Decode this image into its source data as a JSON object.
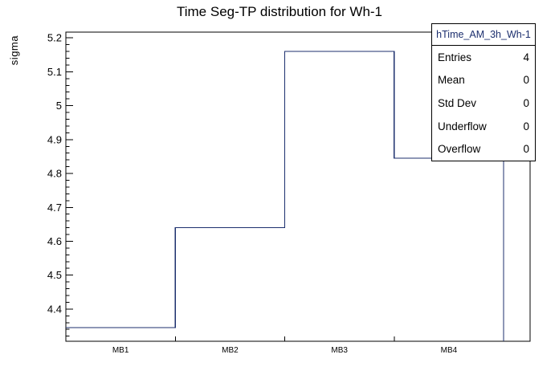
{
  "page_title": "Time Seg-TP distribution for Wh-1",
  "chart_data": {
    "type": "bar",
    "draw_style": "step-outline-histogram",
    "title": "Time Seg-TP distribution for Wh-1",
    "xlabel": "",
    "ylabel": "sigma",
    "categories": [
      "MB1",
      "MB2",
      "MB3",
      "MB4"
    ],
    "values": [
      4.345,
      4.64,
      5.16,
      4.845
    ],
    "ylim": [
      4.305,
      5.217
    ],
    "yticks": [
      4.4,
      4.5,
      4.6,
      4.7,
      4.8,
      4.9,
      5,
      5.1,
      5.2
    ],
    "y_minor_step": 0.02,
    "grid": false,
    "legend_position": "none",
    "line_color": "#1c2f6e",
    "frame_color": "#000000"
  },
  "stats_box": {
    "header": "hTime_AM_3h_Wh-1",
    "rows": [
      {
        "label": "Entries",
        "value": "4"
      },
      {
        "label": "Mean",
        "value": "0"
      },
      {
        "label": "Std Dev",
        "value": "0"
      },
      {
        "label": "Underflow",
        "value": "0"
      },
      {
        "label": "Overflow",
        "value": "0"
      }
    ]
  }
}
